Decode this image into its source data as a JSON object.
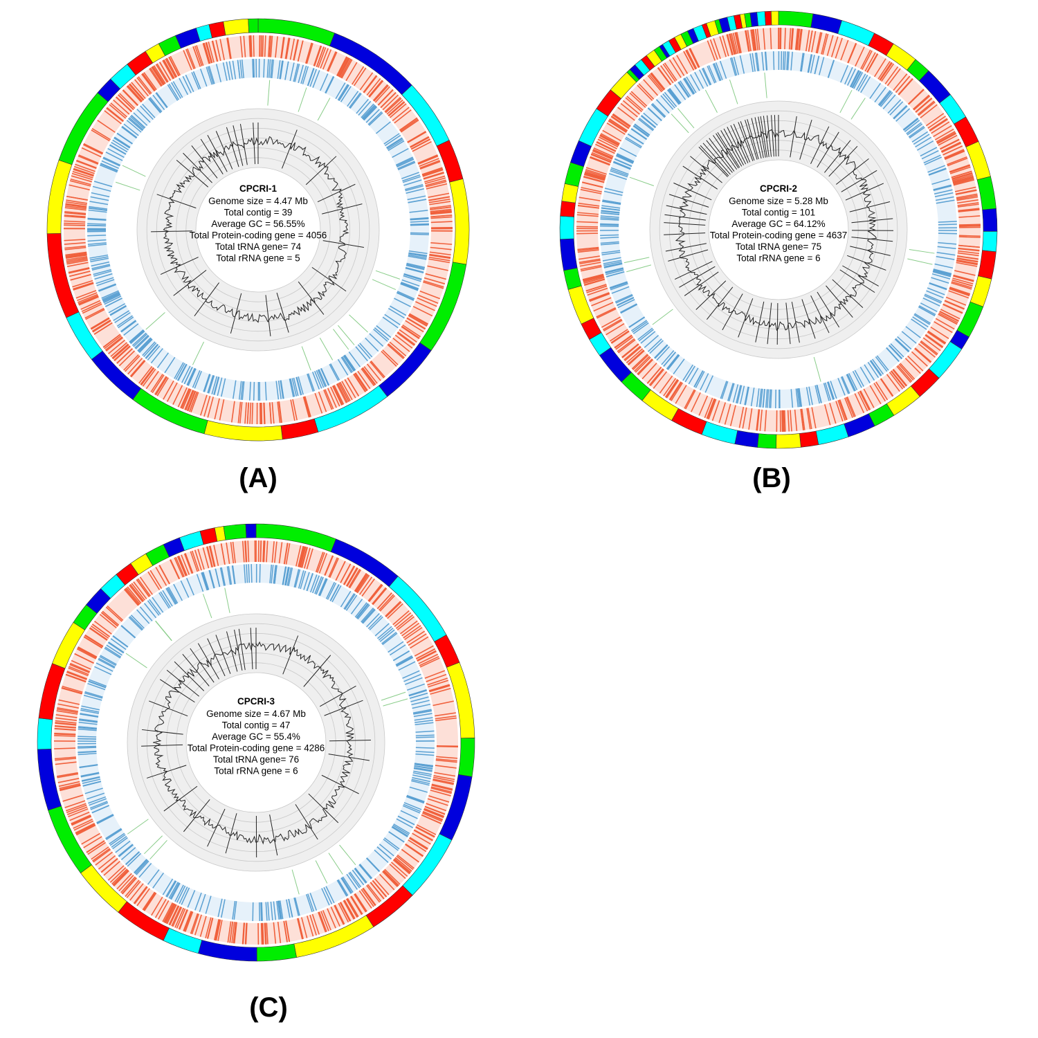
{
  "panels": [
    {
      "label": "(A)",
      "title": "CPCRI-1",
      "stats": [
        "Genome size = 4.47 Mb",
        "Total contig = 39",
        "Average GC = 56.55%",
        "Total Protein-coding gene = 4056",
        "Total tRNA gene= 74",
        "Total rRNA gene = 5"
      ]
    },
    {
      "label": "(B)",
      "title": "CPCRI-2",
      "stats": [
        "Genome size = 5.28 Mb",
        "Total contig = 101",
        "Average GC = 64.12%",
        "Total Protein-coding gene = 4637",
        "Total tRNA gene= 75",
        "Total rRNA gene = 6"
      ]
    },
    {
      "label": "(C)",
      "title": "CPCRI-3",
      "stats": [
        "Genome size = 4.67 Mb",
        "Total contig = 47",
        "Average GC = 55.4%",
        "Total Protein-coding gene = 4286",
        "Total tRNA gene= 76",
        "Total rRNA gene = 6"
      ]
    }
  ]
}
